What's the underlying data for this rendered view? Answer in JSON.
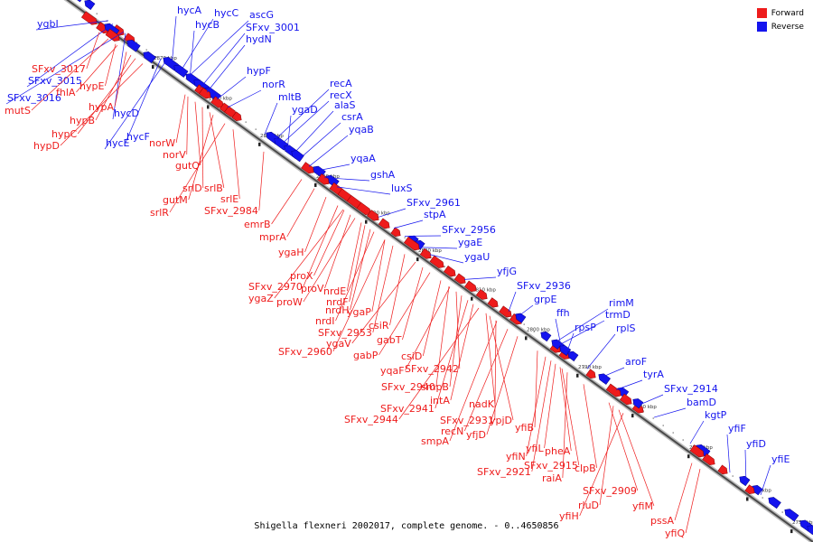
{
  "legend": {
    "forward": {
      "label": "Forward",
      "color": "#ee1c1c"
    },
    "reverse": {
      "label": "Reverse",
      "color": "#1414ee"
    }
  },
  "caption": "Shigella flexneri 2002017, complete genome. - 0..4650856",
  "ticks": [
    "2870 kbp",
    "2860 kbp",
    "2850 kbp",
    "2840 kbp",
    "2830 kbp",
    "2820 kbp",
    "2810 kbp",
    "2800 kbp",
    "2790 kbp",
    "2780 kbp",
    "2770 kbp",
    "2760 kbp",
    "2750 kbp"
  ],
  "reverse_labels": [
    "hycA",
    "hycC",
    "ascG",
    "hycB",
    "SFxv_3001",
    "hydN",
    "ygbI",
    "hypF",
    "norR",
    "SFxv_3015",
    "SFxv_3016",
    "mltB",
    "recA",
    "recX",
    "ygaD",
    "alaS",
    "csrA",
    "hycD",
    "hycE",
    "hycF",
    "yqaB",
    "yqaA",
    "gshA",
    "luxS",
    "SFxv_2961",
    "stpA",
    "SFxv_2956",
    "ygaE",
    "ygaU",
    "yfjG",
    "SFxv_2936",
    "grpE",
    "rimM",
    "trmD",
    "ffh",
    "rpsP",
    "rplS",
    "aroF",
    "tyrA",
    "SFxv_2914",
    "bamD",
    "kgtP",
    "yfiF",
    "yfiD",
    "yfiE"
  ],
  "forward_labels": [
    "SFxv_3017",
    "mutS",
    "hypE",
    "fhlA",
    "hypA",
    "hypB",
    "hypC",
    "hypD",
    "norW",
    "norV",
    "gutQ",
    "srlD",
    "srlB",
    "gutM",
    "srlE",
    "srlR",
    "SFxv_2984",
    "emrB",
    "mprA",
    "ygaH",
    "proX",
    "SFxv_2970",
    "ygaZ",
    "proV",
    "proW",
    "nrdF",
    "nrdE",
    "nrdH",
    "nrdI",
    "ygaP",
    "SFxv_2953",
    "csiR",
    "ygaV",
    "gabT",
    "SFxv_2960",
    "gabP",
    "csiD",
    "yqaF",
    "SFxv_2942",
    "smpB",
    "SFxv_2940",
    "intA",
    "nadK",
    "SFxv_2941",
    "ypjD",
    "SFxv_2931",
    "SFxv_2944",
    "recN",
    "yfjD",
    "yfiB",
    "smpA",
    "yfiN",
    "yfiL",
    "pheA",
    "SFxv_2915",
    "SFxv_2921",
    "clpB",
    "raiA",
    "SFxv_2909",
    "rluD",
    "yfiM",
    "yfiH",
    "pssA",
    "yfiQ"
  ]
}
